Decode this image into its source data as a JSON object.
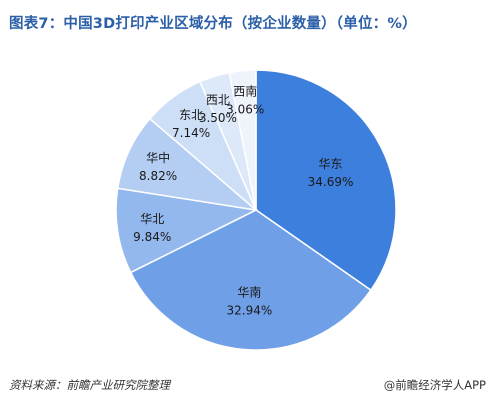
{
  "page": {
    "title": "图表7：中国3D打印产业区域分布（按企业数量）（单位：%）",
    "source": "资料来源：前瞻产业研究院整理",
    "brand": "@前瞻经济学人APP"
  },
  "chart_data": {
    "type": "pie",
    "title": "图表7：中国3D打印产业区域分布（按企业数量）（单位：%）",
    "unit": "%",
    "start": "12 o'clock, clockwise",
    "slices": [
      {
        "label": "华东",
        "value": 34.69,
        "value_text": "34.69%",
        "color": "#3d7fdc"
      },
      {
        "label": "华南",
        "value": 32.94,
        "value_text": "32.94%",
        "color": "#6f9fe6"
      },
      {
        "label": "华北",
        "value": 9.84,
        "value_text": "9.84%",
        "color": "#93b8ee"
      },
      {
        "label": "华中",
        "value": 8.82,
        "value_text": "8.82%",
        "color": "#b4cdf3"
      },
      {
        "label": "东北",
        "value": 7.14,
        "value_text": "7.14%",
        "color": "#cddef7"
      },
      {
        "label": "西北",
        "value": 3.5,
        "value_text": "3.50%",
        "color": "#dde8f9"
      },
      {
        "label": "西南",
        "value": 3.06,
        "value_text": "3.06%",
        "color": "#eef3fc"
      }
    ]
  }
}
